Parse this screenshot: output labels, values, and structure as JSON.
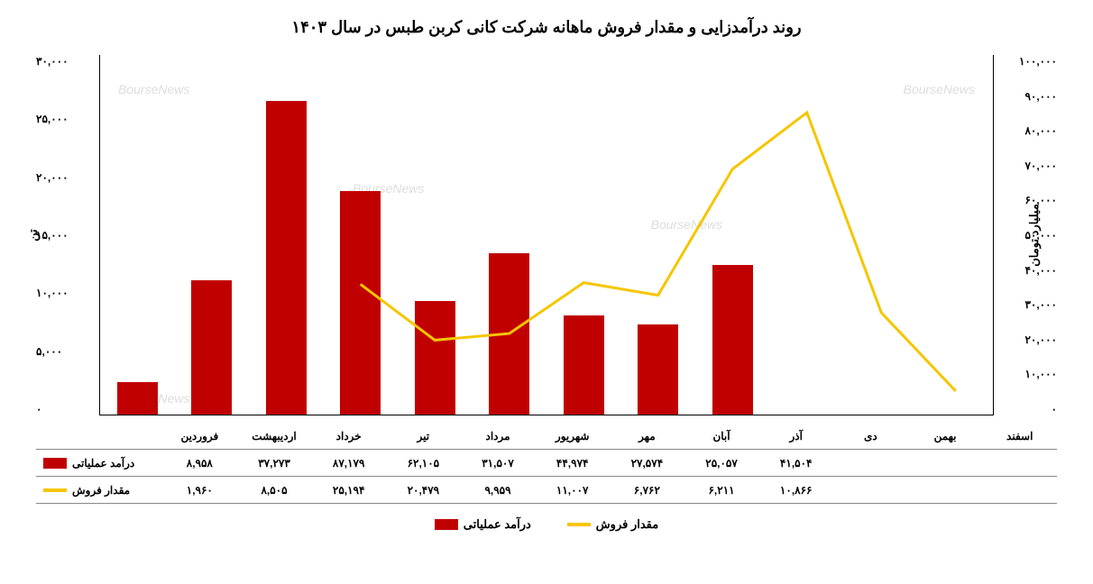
{
  "title": "روند درآمدزایی و مقدار فروش ماهانه شرکت کانی کربن طبس در سال ۱۴۰۳",
  "chart": {
    "type": "bar-line-combo",
    "categories": [
      "فروردین",
      "اردیبهشت",
      "خرداد",
      "تیر",
      "مرداد",
      "شهریور",
      "مهر",
      "آبان",
      "آذر",
      "دی",
      "بهمن",
      "اسفند"
    ],
    "series": {
      "revenue": {
        "label": "درآمد عملیاتی",
        "type": "bar",
        "color": "#c00000",
        "values": [
          8958,
          37273,
          87179,
          62105,
          31507,
          44974,
          27574,
          25057,
          41504,
          null,
          null,
          null
        ],
        "display_values": [
          "۸,۹۵۸",
          "۳۷,۲۷۳",
          "۸۷,۱۷۹",
          "۶۲,۱۰۵",
          "۳۱,۵۰۷",
          "۴۴,۹۷۴",
          "۲۷,۵۷۴",
          "۲۵,۰۵۷",
          "۴۱,۵۰۴",
          "",
          "",
          ""
        ],
        "axis": "right",
        "ymax": 100000
      },
      "sales": {
        "label": "مقدار فروش",
        "type": "line",
        "color": "#f5c600",
        "values": [
          1960,
          8505,
          25194,
          20479,
          9959,
          11007,
          6762,
          6211,
          10866,
          null,
          null,
          null
        ],
        "display_values": [
          "۱,۹۶۰",
          "۸,۵۰۵",
          "۲۵,۱۹۴",
          "۲۰,۴۷۹",
          "۹,۹۵۹",
          "۱۱,۰۰۷",
          "۶,۷۶۲",
          "۶,۲۱۱",
          "۱۰,۸۶۶",
          "",
          "",
          ""
        ],
        "axis": "left",
        "ymax": 30000,
        "line_width": 3
      }
    },
    "y_axis_right": {
      "label": "میلیارد تومان",
      "min": 0,
      "max": 100000,
      "step": 10000,
      "ticks": [
        "۰",
        "۱۰,۰۰۰",
        "۲۰,۰۰۰",
        "۳۰,۰۰۰",
        "۴۰,۰۰۰",
        "۵۰,۰۰۰",
        "۶۰,۰۰۰",
        "۷۰,۰۰۰",
        "۸۰,۰۰۰",
        "۹۰,۰۰۰",
        "۱۰۰,۰۰۰"
      ]
    },
    "y_axis_left": {
      "label": "تن",
      "min": 0,
      "max": 30000,
      "step": 5000,
      "ticks": [
        "۰",
        "۵,۰۰۰",
        "۱۰,۰۰۰",
        "۱۵,۰۰۰",
        "۲۰,۰۰۰",
        "۲۵,۰۰۰",
        "۳۰,۰۰۰"
      ]
    },
    "background_color": "#ffffff",
    "watermark_text": "BourseNews"
  }
}
